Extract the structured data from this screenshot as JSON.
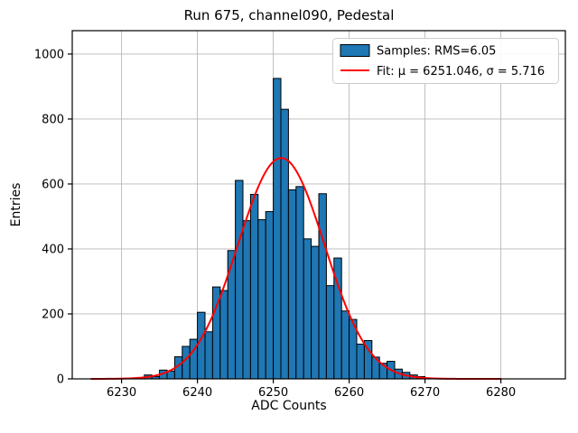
{
  "chart_data": {
    "type": "bar",
    "title": "Run 675, channel090, Pedestal",
    "xlabel": "ADC Counts",
    "ylabel": "Entries",
    "xlim": [
      6223.5,
      6288.5
    ],
    "ylim": [
      0,
      1072
    ],
    "xticks": [
      6230,
      6240,
      6250,
      6260,
      6270,
      6280
    ],
    "yticks": [
      0,
      200,
      400,
      600,
      800,
      1000
    ],
    "grid": true,
    "legend_position": "upper right",
    "histogram": {
      "label": "Samples: RMS=6.05",
      "rms": 6.05,
      "bin_start": 6233,
      "bin_width": 1,
      "counts": [
        12,
        7,
        27,
        24,
        68,
        100,
        122,
        205,
        145,
        283,
        272,
        395,
        611,
        487,
        568,
        490,
        515,
        925,
        830,
        582,
        592,
        431,
        408,
        570,
        287,
        372,
        209,
        183,
        107,
        118,
        67,
        48,
        54,
        30,
        20,
        12,
        7
      ]
    },
    "fit": {
      "label": "Fit: μ = 6251.046, σ = 5.716",
      "mu": 6251.046,
      "sigma": 5.716,
      "amplitude": 680,
      "x_range": [
        6226,
        6280
      ]
    },
    "colors": {
      "bar_fill": "#1f77b4",
      "bar_edge": "#000000",
      "fit_line": "#ff0000",
      "grid": "#b8b8b8",
      "spine": "#000000",
      "legend_edge": "#cccccc",
      "background": "#ffffff"
    }
  }
}
